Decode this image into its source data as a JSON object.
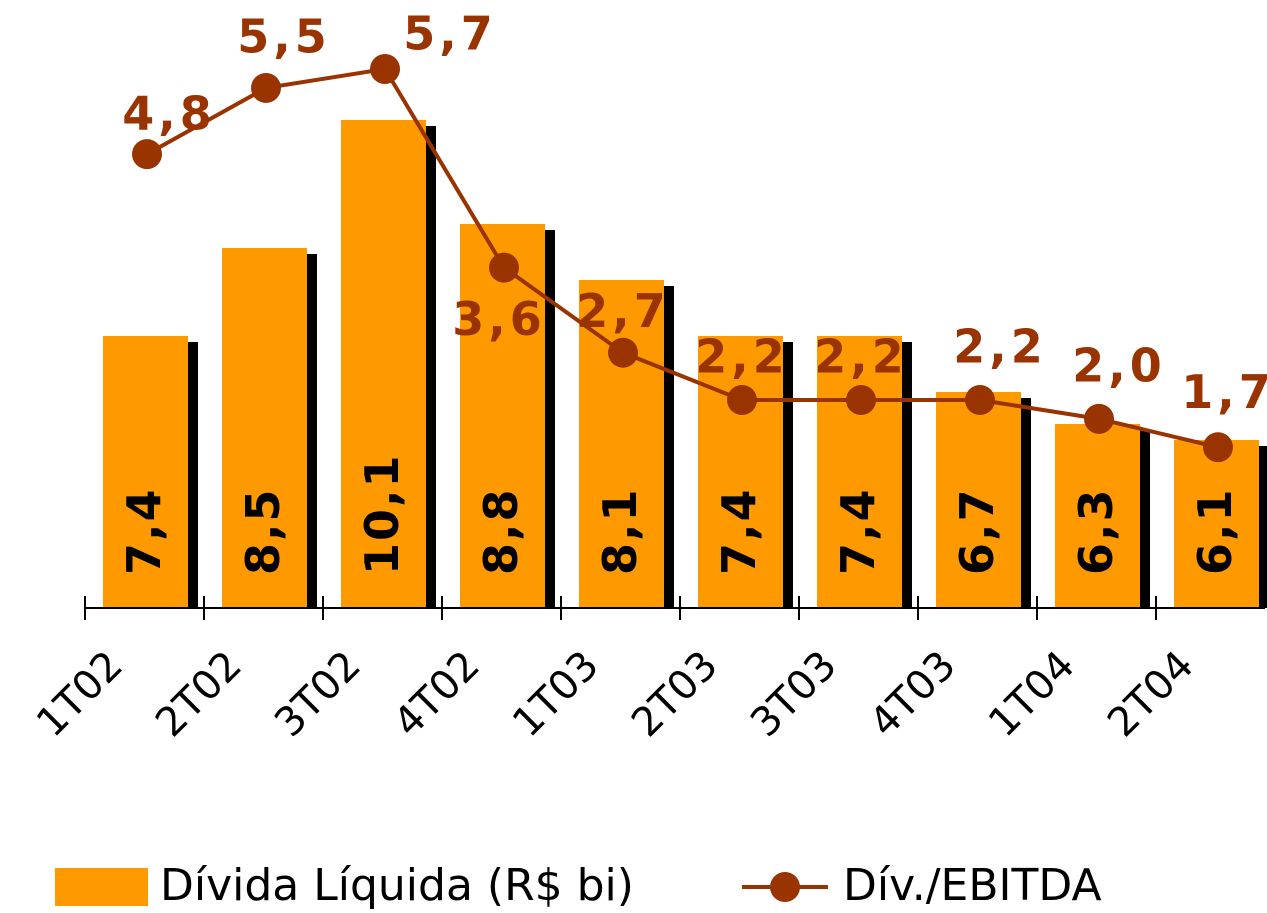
{
  "chart_data": {
    "type": "bar",
    "categories": [
      "1T02",
      "2T02",
      "3T02",
      "4T02",
      "1T03",
      "2T03",
      "3T03",
      "4T03",
      "1T04",
      "2T04"
    ],
    "series": [
      {
        "name": "Dívida Líquida (R$ bi)",
        "color": "#ff9900",
        "type": "bar",
        "values": [
          7.4,
          8.5,
          10.1,
          8.8,
          8.1,
          7.4,
          7.4,
          6.7,
          6.3,
          6.1
        ],
        "value_labels": [
          "7,4",
          "8,5",
          "10,1",
          "8,8",
          "8,1",
          "7,4",
          "7,4",
          "6,7",
          "6,3",
          "6,1"
        ]
      },
      {
        "name": "Dív./EBITDA",
        "color": "#993300",
        "type": "line",
        "axis": "y2",
        "values": [
          4.8,
          5.5,
          5.7,
          3.6,
          2.7,
          2.2,
          2.2,
          2.2,
          2.0,
          1.7
        ],
        "value_labels": [
          "4,8",
          "5,5",
          "5,7",
          "3,6",
          "2,7",
          "2,2",
          "2,2",
          "2,2",
          "2,0",
          "1,7"
        ]
      }
    ],
    "ylim": [
      4,
      11.6
    ],
    "y2lim": [
      0,
      6.43
    ]
  }
}
